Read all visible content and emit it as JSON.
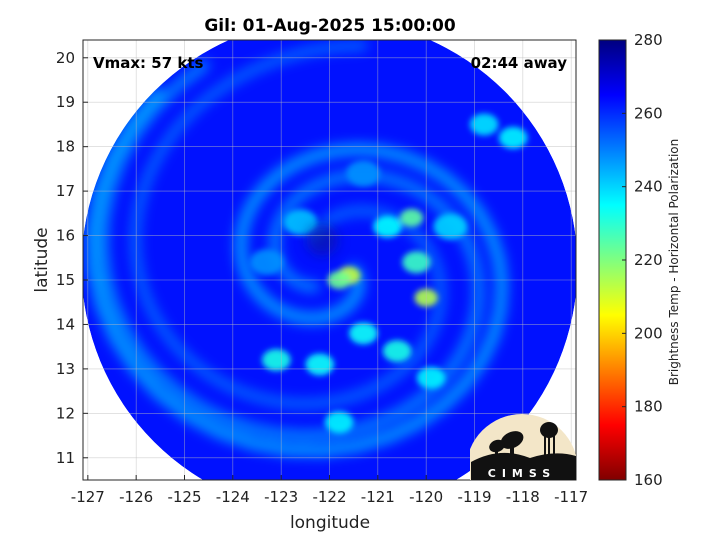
{
  "chart_data": {
    "type": "heatmap",
    "title": "Gil: 01-Aug-2025 15:00:00",
    "xlabel": "longitude",
    "ylabel": "latitude",
    "xlim": [
      -127.1,
      -116.9
    ],
    "ylim": [
      10.5,
      20.4
    ],
    "xticks": [
      -127,
      -126,
      -125,
      -124,
      -123,
      -122,
      -121,
      -120,
      -119,
      -118,
      -117
    ],
    "yticks": [
      11,
      12,
      13,
      14,
      15,
      16,
      17,
      18,
      19,
      20
    ],
    "grid": true,
    "annotations": {
      "left": "Vmax: 57 kts",
      "right": "02:44 away"
    },
    "colorbar": {
      "label": "Brightness Temp - Horizontal Polarization",
      "min": 160,
      "max": 280,
      "ticks": [
        160,
        180,
        200,
        220,
        240,
        260,
        280
      ],
      "colormap": "jet"
    },
    "swath": {
      "center_lon": -122.0,
      "center_lat": 15.3,
      "background_value": 263
    },
    "features": [
      {
        "lon": -121.6,
        "lat": 15.1,
        "value": 212
      },
      {
        "lon": -121.8,
        "lat": 15.0,
        "value": 222
      },
      {
        "lon": -120.0,
        "lat": 14.6,
        "value": 214
      },
      {
        "lon": -120.2,
        "lat": 15.4,
        "value": 228
      },
      {
        "lon": -120.3,
        "lat": 16.4,
        "value": 224
      },
      {
        "lon": -120.8,
        "lat": 16.2,
        "value": 235
      },
      {
        "lon": -121.3,
        "lat": 13.8,
        "value": 234
      },
      {
        "lon": -120.6,
        "lat": 13.4,
        "value": 232
      },
      {
        "lon": -119.9,
        "lat": 12.8,
        "value": 236
      },
      {
        "lon": -122.2,
        "lat": 13.1,
        "value": 234
      },
      {
        "lon": -123.1,
        "lat": 13.2,
        "value": 232
      },
      {
        "lon": -121.8,
        "lat": 11.8,
        "value": 236
      },
      {
        "lon": -118.8,
        "lat": 18.5,
        "value": 238
      },
      {
        "lon": -118.2,
        "lat": 18.2,
        "value": 236
      },
      {
        "lon": -122.6,
        "lat": 16.3,
        "value": 242
      },
      {
        "lon": -123.3,
        "lat": 15.4,
        "value": 248
      },
      {
        "lon": -121.3,
        "lat": 17.4,
        "value": 248
      },
      {
        "lon": -119.5,
        "lat": 16.2,
        "value": 240
      }
    ],
    "logo": "CIMSS"
  }
}
